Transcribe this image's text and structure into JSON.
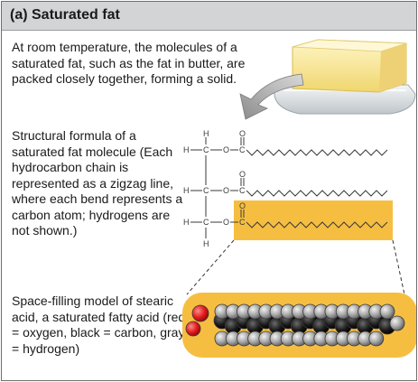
{
  "header": {
    "title": "(a) Saturated fat"
  },
  "intro_text": "At room temperature, the molecules of a saturated fat, such as the fat in butter, are packed closely together, forming a solid.",
  "structural_text": "Structural formula of a saturated fat molecule (Each hydrocarbon chain is represented as a zigzag line, where each bend represents a carbon atom; hydrogens are not shown.)",
  "spacefill_text": "Space-filling model of stearic acid, a saturated fatty acid (red = oxygen, black = carbon, gray = hydrogen)",
  "atoms": {
    "H": "H",
    "C": "C",
    "O": "O"
  },
  "colors": {
    "highlight": "#f6be41",
    "header_bg": "#d3d4d6",
    "oxygen": "#e0191b",
    "carbon": "#1a1a1a",
    "hydrogen": "#9a9a9a",
    "butter": "#f6e49a"
  }
}
